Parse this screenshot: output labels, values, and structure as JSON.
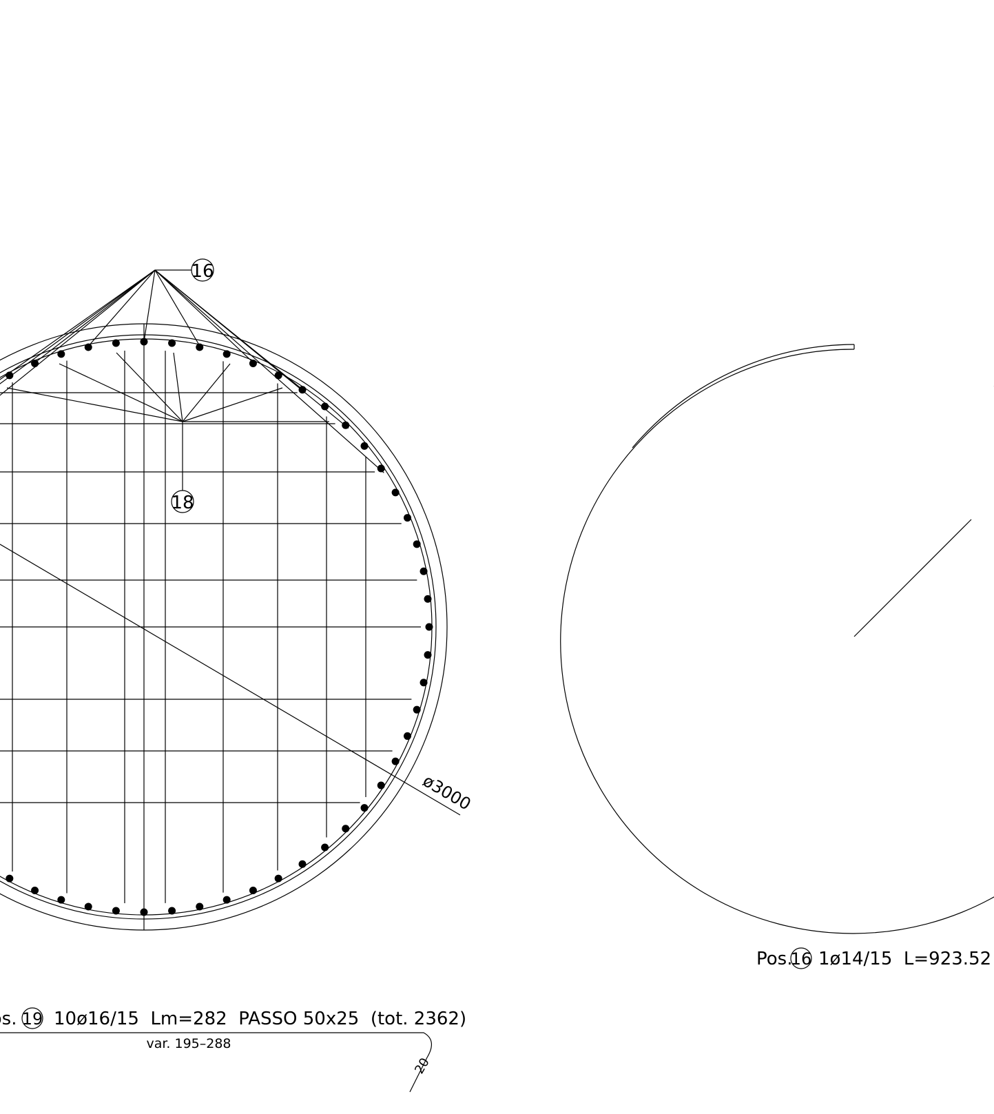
{
  "labels": {
    "top_callout": "16",
    "middle_callout": "18",
    "diameter": "ø3000"
  },
  "section_left": {
    "prefix": "Pos.",
    "position": "19",
    "description": "10ø16/15  Lm=282  PASSO 50x25  (tot. 2362)",
    "variation": "var. 195–288",
    "hook": "20"
  },
  "section_right": {
    "prefix": "Pos.",
    "position": "16",
    "description": "1ø14/15  L=923.52"
  }
}
